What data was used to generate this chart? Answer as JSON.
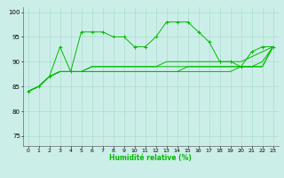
{
  "xlabel": "Humidité relative (%)",
  "xlim": [
    -0.5,
    23.5
  ],
  "ylim": [
    73,
    101
  ],
  "yticks": [
    75,
    80,
    85,
    90,
    95,
    100
  ],
  "xticks": [
    0,
    1,
    2,
    3,
    4,
    5,
    6,
    7,
    8,
    9,
    10,
    11,
    12,
    13,
    14,
    15,
    16,
    17,
    18,
    19,
    20,
    21,
    22,
    23
  ],
  "background_color": "#cceee8",
  "grid_color": "#aaddcc",
  "line_color": "#00bb00",
  "series": [
    [
      84,
      85,
      87,
      93,
      88,
      96,
      96,
      96,
      95,
      95,
      93,
      93,
      95,
      98,
      98,
      98,
      96,
      94,
      90,
      90,
      89,
      92,
      93,
      93
    ],
    [
      84,
      85,
      87,
      88,
      88,
      88,
      89,
      89,
      89,
      89,
      89,
      89,
      89,
      90,
      90,
      90,
      90,
      90,
      90,
      90,
      90,
      91,
      92,
      93
    ],
    [
      84,
      85,
      87,
      88,
      88,
      88,
      89,
      89,
      89,
      89,
      89,
      89,
      89,
      89,
      89,
      89,
      89,
      89,
      89,
      89,
      89,
      89,
      90,
      93
    ],
    [
      84,
      85,
      87,
      88,
      88,
      88,
      88,
      88,
      88,
      88,
      88,
      88,
      88,
      88,
      88,
      89,
      89,
      89,
      89,
      89,
      89,
      89,
      89,
      93
    ],
    [
      84,
      85,
      87,
      88,
      88,
      88,
      88,
      88,
      88,
      88,
      88,
      88,
      88,
      88,
      88,
      88,
      88,
      88,
      88,
      88,
      89,
      89,
      89,
      93
    ]
  ],
  "marker_series": 0,
  "figsize": [
    3.2,
    2.0
  ],
  "dpi": 100
}
